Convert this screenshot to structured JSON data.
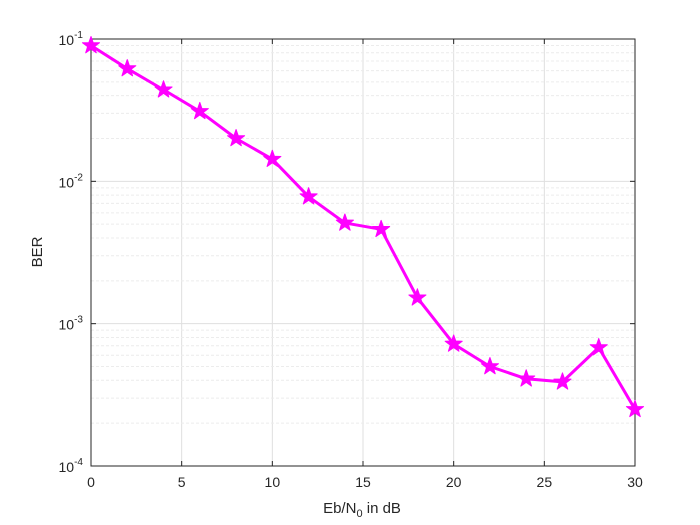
{
  "chart_data": {
    "type": "line",
    "xlabel": {
      "main": "Eb/N",
      "sub": "0",
      "tail": " in dB"
    },
    "ylabel": "BER",
    "y_scale": "log",
    "xlim": [
      0,
      30
    ],
    "ylim": [
      0.0001,
      0.1
    ],
    "grid": true,
    "minor_grid": true,
    "x_ticks": [
      "0",
      "5",
      "10",
      "15",
      "20",
      "25",
      "30"
    ],
    "y_ticks": [
      {
        "base": "10",
        "exp": "-4",
        "value": 0.0001
      },
      {
        "base": "10",
        "exp": "-3",
        "value": 0.001
      },
      {
        "base": "10",
        "exp": "-2",
        "value": 0.01
      },
      {
        "base": "10",
        "exp": "-1",
        "value": 0.1
      }
    ],
    "series": [
      {
        "color": "#ff00ff",
        "marker": "star",
        "points": [
          {
            "x": 0,
            "y": 0.09
          },
          {
            "x": 2,
            "y": 0.062
          },
          {
            "x": 4,
            "y": 0.044
          },
          {
            "x": 6,
            "y": 0.031
          },
          {
            "x": 8,
            "y": 0.02
          },
          {
            "x": 10,
            "y": 0.0143
          },
          {
            "x": 12,
            "y": 0.0078
          },
          {
            "x": 14,
            "y": 0.0051
          },
          {
            "x": 16,
            "y": 0.0046
          },
          {
            "x": 18,
            "y": 0.00152
          },
          {
            "x": 20,
            "y": 0.00072
          },
          {
            "x": 22,
            "y": 0.0005
          },
          {
            "x": 24,
            "y": 0.00041
          },
          {
            "x": 26,
            "y": 0.00039
          },
          {
            "x": 28,
            "y": 0.00068
          },
          {
            "x": 30,
            "y": 0.00025
          }
        ]
      }
    ]
  }
}
